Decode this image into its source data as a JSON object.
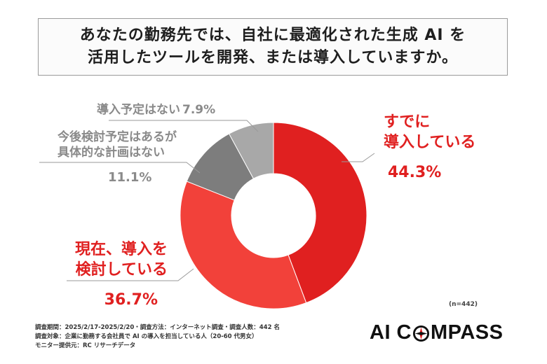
{
  "title": {
    "line1": "あなたの勤務先では、自社に最適化された生成 AI を",
    "line2": "活用したツールを開発、または導入していますか。"
  },
  "chart_data": {
    "type": "pie",
    "donut": true,
    "title": "あなたの勤務先では、自社に最適化された生成 AI を活用したツールを開発、または導入していますか。",
    "slices": [
      {
        "label_lines": [
          "すでに",
          "導入している"
        ],
        "value": 44.3,
        "value_text": "44.3%",
        "color": "#e02020",
        "label_color": "#e02020"
      },
      {
        "label_lines": [
          "現在、導入を",
          "検討している"
        ],
        "value": 36.7,
        "value_text": "36.7%",
        "color": "#f2413a",
        "label_color": "#e02020"
      },
      {
        "label_lines": [
          "今後検討予定はあるが",
          "具体的な計画はない"
        ],
        "value": 11.1,
        "value_text": "11.1%",
        "color": "#7d7d7d",
        "label_color": "#8a8a8a"
      },
      {
        "label_lines": [
          "導入予定はない"
        ],
        "value": 7.9,
        "value_text": "7.9%",
        "color": "#a8a8a8",
        "label_color": "#8a8a8a"
      }
    ],
    "sample_size": "(n=442)"
  },
  "footer": {
    "line1": "調査期間：2025/2/17-2025/2/20・調査方法：インターネット調査・調査人数：442 名",
    "line2": "調査対象：企業に勤務する会社員で AI の導入を担当している人（20-60 代男女）",
    "line3": "モニター提供元：RC リサーチデータ"
  },
  "logo": {
    "before": "AI C",
    "after": "MPASS"
  }
}
